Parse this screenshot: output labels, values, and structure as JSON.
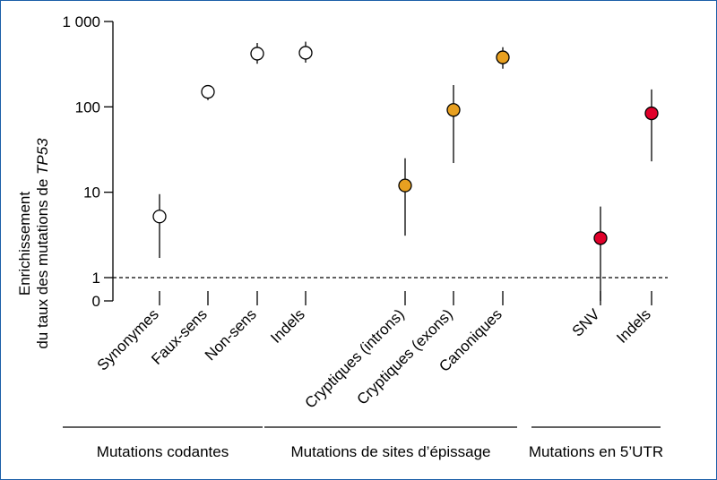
{
  "chart_data": {
    "type": "scatter",
    "ylabel_line1": "Enrichissement",
    "ylabel_line2_prefix": "du taux des mutations de ",
    "ylabel_line2_italic": "TP53",
    "y_scale": "log",
    "ylim": [
      0.55,
      1000
    ],
    "y_ticks": [
      {
        "value": 1000,
        "label": "1 000"
      },
      {
        "value": 100,
        "label": "100"
      },
      {
        "value": 10,
        "label": "10"
      },
      {
        "value": 1,
        "label": "1"
      },
      {
        "value": 0.55,
        "label": "0"
      }
    ],
    "reference_line": {
      "value": 1,
      "style": "dashed"
    },
    "categories": [
      "Synonymes",
      "Faux-sens",
      "Non-sens",
      "Indels",
      "Cryptiques (introns)",
      "Cryptiques (exons)",
      "Canoniques",
      "SNV",
      "Indels"
    ],
    "points": [
      {
        "category": "Synonymes",
        "value": 5.2,
        "low": 1.7,
        "high": 9.5,
        "color": "#ffffff",
        "group": 0
      },
      {
        "category": "Faux-sens",
        "value": 150,
        "low": 120,
        "high": 170,
        "color": "#ffffff",
        "group": 0
      },
      {
        "category": "Non-sens",
        "value": 420,
        "low": 320,
        "high": 560,
        "color": "#ffffff",
        "group": 0
      },
      {
        "category": "Indels",
        "value": 430,
        "low": 330,
        "high": 580,
        "color": "#ffffff",
        "group": 0
      },
      {
        "category": "Cryptiques (introns)",
        "value": 12,
        "low": 3.1,
        "high": 25,
        "color": "#e8a020",
        "group": 1
      },
      {
        "category": "Cryptiques (exons)",
        "value": 92,
        "low": 22,
        "high": 180,
        "color": "#e8a020",
        "group": 1
      },
      {
        "category": "Canoniques",
        "value": 380,
        "low": 280,
        "high": 500,
        "color": "#e8a020",
        "group": 1
      },
      {
        "category": "SNV",
        "value": 2.9,
        "low": 0.55,
        "high": 6.8,
        "color": "#e0002a",
        "group": 2
      },
      {
        "category": "Indels",
        "value": 84,
        "low": 23,
        "high": 160,
        "color": "#e0002a",
        "group": 2
      }
    ],
    "groups": [
      {
        "label": "Mutations codantes"
      },
      {
        "label": "Mutations de sites d’épissage"
      },
      {
        "label": "Mutations en 5’UTR"
      }
    ]
  },
  "colors": {
    "frame": "#1c5fa8",
    "open_marker": "#ffffff",
    "splice": "#e8a020",
    "utr": "#e0002a"
  }
}
